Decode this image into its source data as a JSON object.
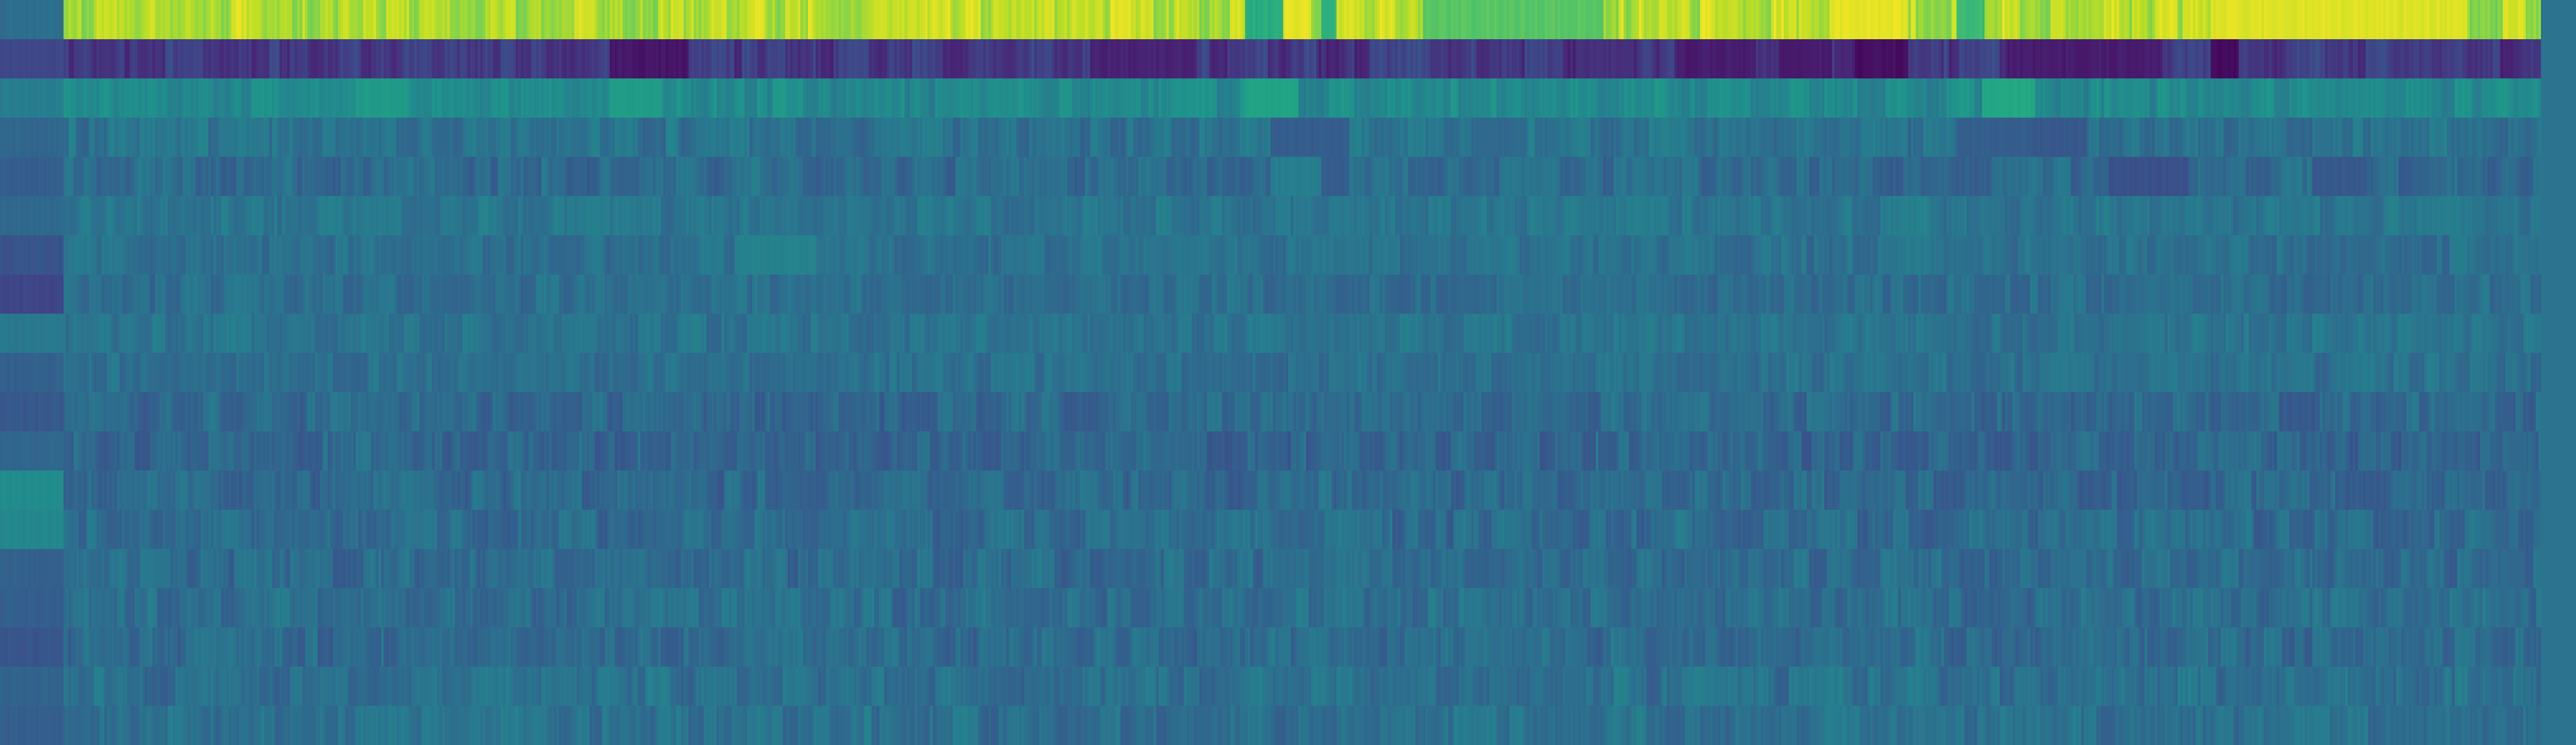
{
  "chart_data": {
    "type": "heatmap",
    "title": "",
    "xlabel": "",
    "ylabel": "",
    "legend": "none",
    "grid": false,
    "colormap": "viridis",
    "value_range": [
      0,
      1
    ],
    "n_rows": 19,
    "n_columns": 1000,
    "row_base_values": [
      0.88,
      0.17,
      0.47,
      0.38,
      0.35,
      0.39,
      0.37,
      0.36,
      0.38,
      0.37,
      0.34,
      0.33,
      0.34,
      0.35,
      0.35,
      0.36,
      0.35,
      0.37,
      0.37
    ],
    "row_noise": [
      0.07,
      0.06,
      0.05,
      0.05,
      0.05,
      0.04,
      0.04,
      0.04,
      0.04,
      0.04,
      0.05,
      0.05,
      0.05,
      0.05,
      0.05,
      0.05,
      0.05,
      0.05,
      0.05
    ],
    "first_column_values": [
      0.36,
      0.22,
      0.42,
      0.33,
      0.3,
      0.34,
      0.26,
      0.21,
      0.4,
      0.31,
      0.28,
      0.33,
      0.48,
      0.46,
      0.31,
      0.3,
      0.27,
      0.32,
      0.3
    ],
    "last_column_values": [
      0.38,
      0.38,
      0.38,
      0.38,
      0.38,
      0.38,
      0.38,
      0.38,
      0.38,
      0.38,
      0.38,
      0.38,
      0.38,
      0.38,
      0.38,
      0.38,
      0.38,
      0.38,
      0.38
    ],
    "row_features": [
      {
        "row": 0,
        "bands": [
          [
            0.49,
            0.51,
            0.62
          ],
          [
            0.505,
            0.515,
            0.96
          ],
          [
            0.52,
            0.525,
            0.65
          ],
          [
            0.56,
            0.63,
            0.74
          ],
          [
            0.72,
            0.75,
            0.96
          ],
          [
            0.77,
            0.78,
            0.68
          ],
          [
            0.87,
            0.97,
            0.95
          ]
        ]
      },
      {
        "row": 1,
        "bands": [
          [
            0.24,
            0.27,
            0.06
          ],
          [
            0.43,
            0.47,
            0.1
          ],
          [
            0.62,
            0.64,
            0.14
          ],
          [
            0.66,
            0.69,
            0.08
          ],
          [
            0.7,
            0.72,
            0.08
          ],
          [
            0.73,
            0.75,
            0.04
          ],
          [
            0.79,
            0.85,
            0.08
          ],
          [
            0.87,
            0.88,
            0.03
          ]
        ]
      },
      {
        "row": 2,
        "bands": [
          [
            0.14,
            0.16,
            0.54
          ],
          [
            0.24,
            0.26,
            0.55
          ],
          [
            0.49,
            0.51,
            0.58
          ],
          [
            0.78,
            0.8,
            0.6
          ]
        ]
      },
      {
        "row": 3,
        "bands": [
          [
            0.5,
            0.53,
            0.3
          ],
          [
            0.58,
            0.6,
            0.34
          ],
          [
            0.77,
            0.8,
            0.3
          ],
          [
            0.8,
            0.82,
            0.28
          ]
        ]
      },
      {
        "row": 4,
        "bands": [
          [
            0.5,
            0.52,
            0.42
          ],
          [
            0.52,
            0.53,
            0.3
          ],
          [
            0.83,
            0.86,
            0.25
          ],
          [
            0.91,
            0.93,
            0.28
          ]
        ]
      },
      {
        "row": 6,
        "bands": [
          [
            0.0,
            0.02,
            0.26
          ],
          [
            0.29,
            0.32,
            0.44
          ]
        ]
      },
      {
        "row": 7,
        "bands": [
          [
            0.0,
            0.02,
            0.2
          ]
        ]
      },
      {
        "row": 11,
        "bands": [
          [
            0.0,
            0.02,
            0.47
          ]
        ]
      },
      {
        "row": 12,
        "bands": [
          [
            0.0,
            0.02,
            0.48
          ]
        ]
      }
    ]
  }
}
